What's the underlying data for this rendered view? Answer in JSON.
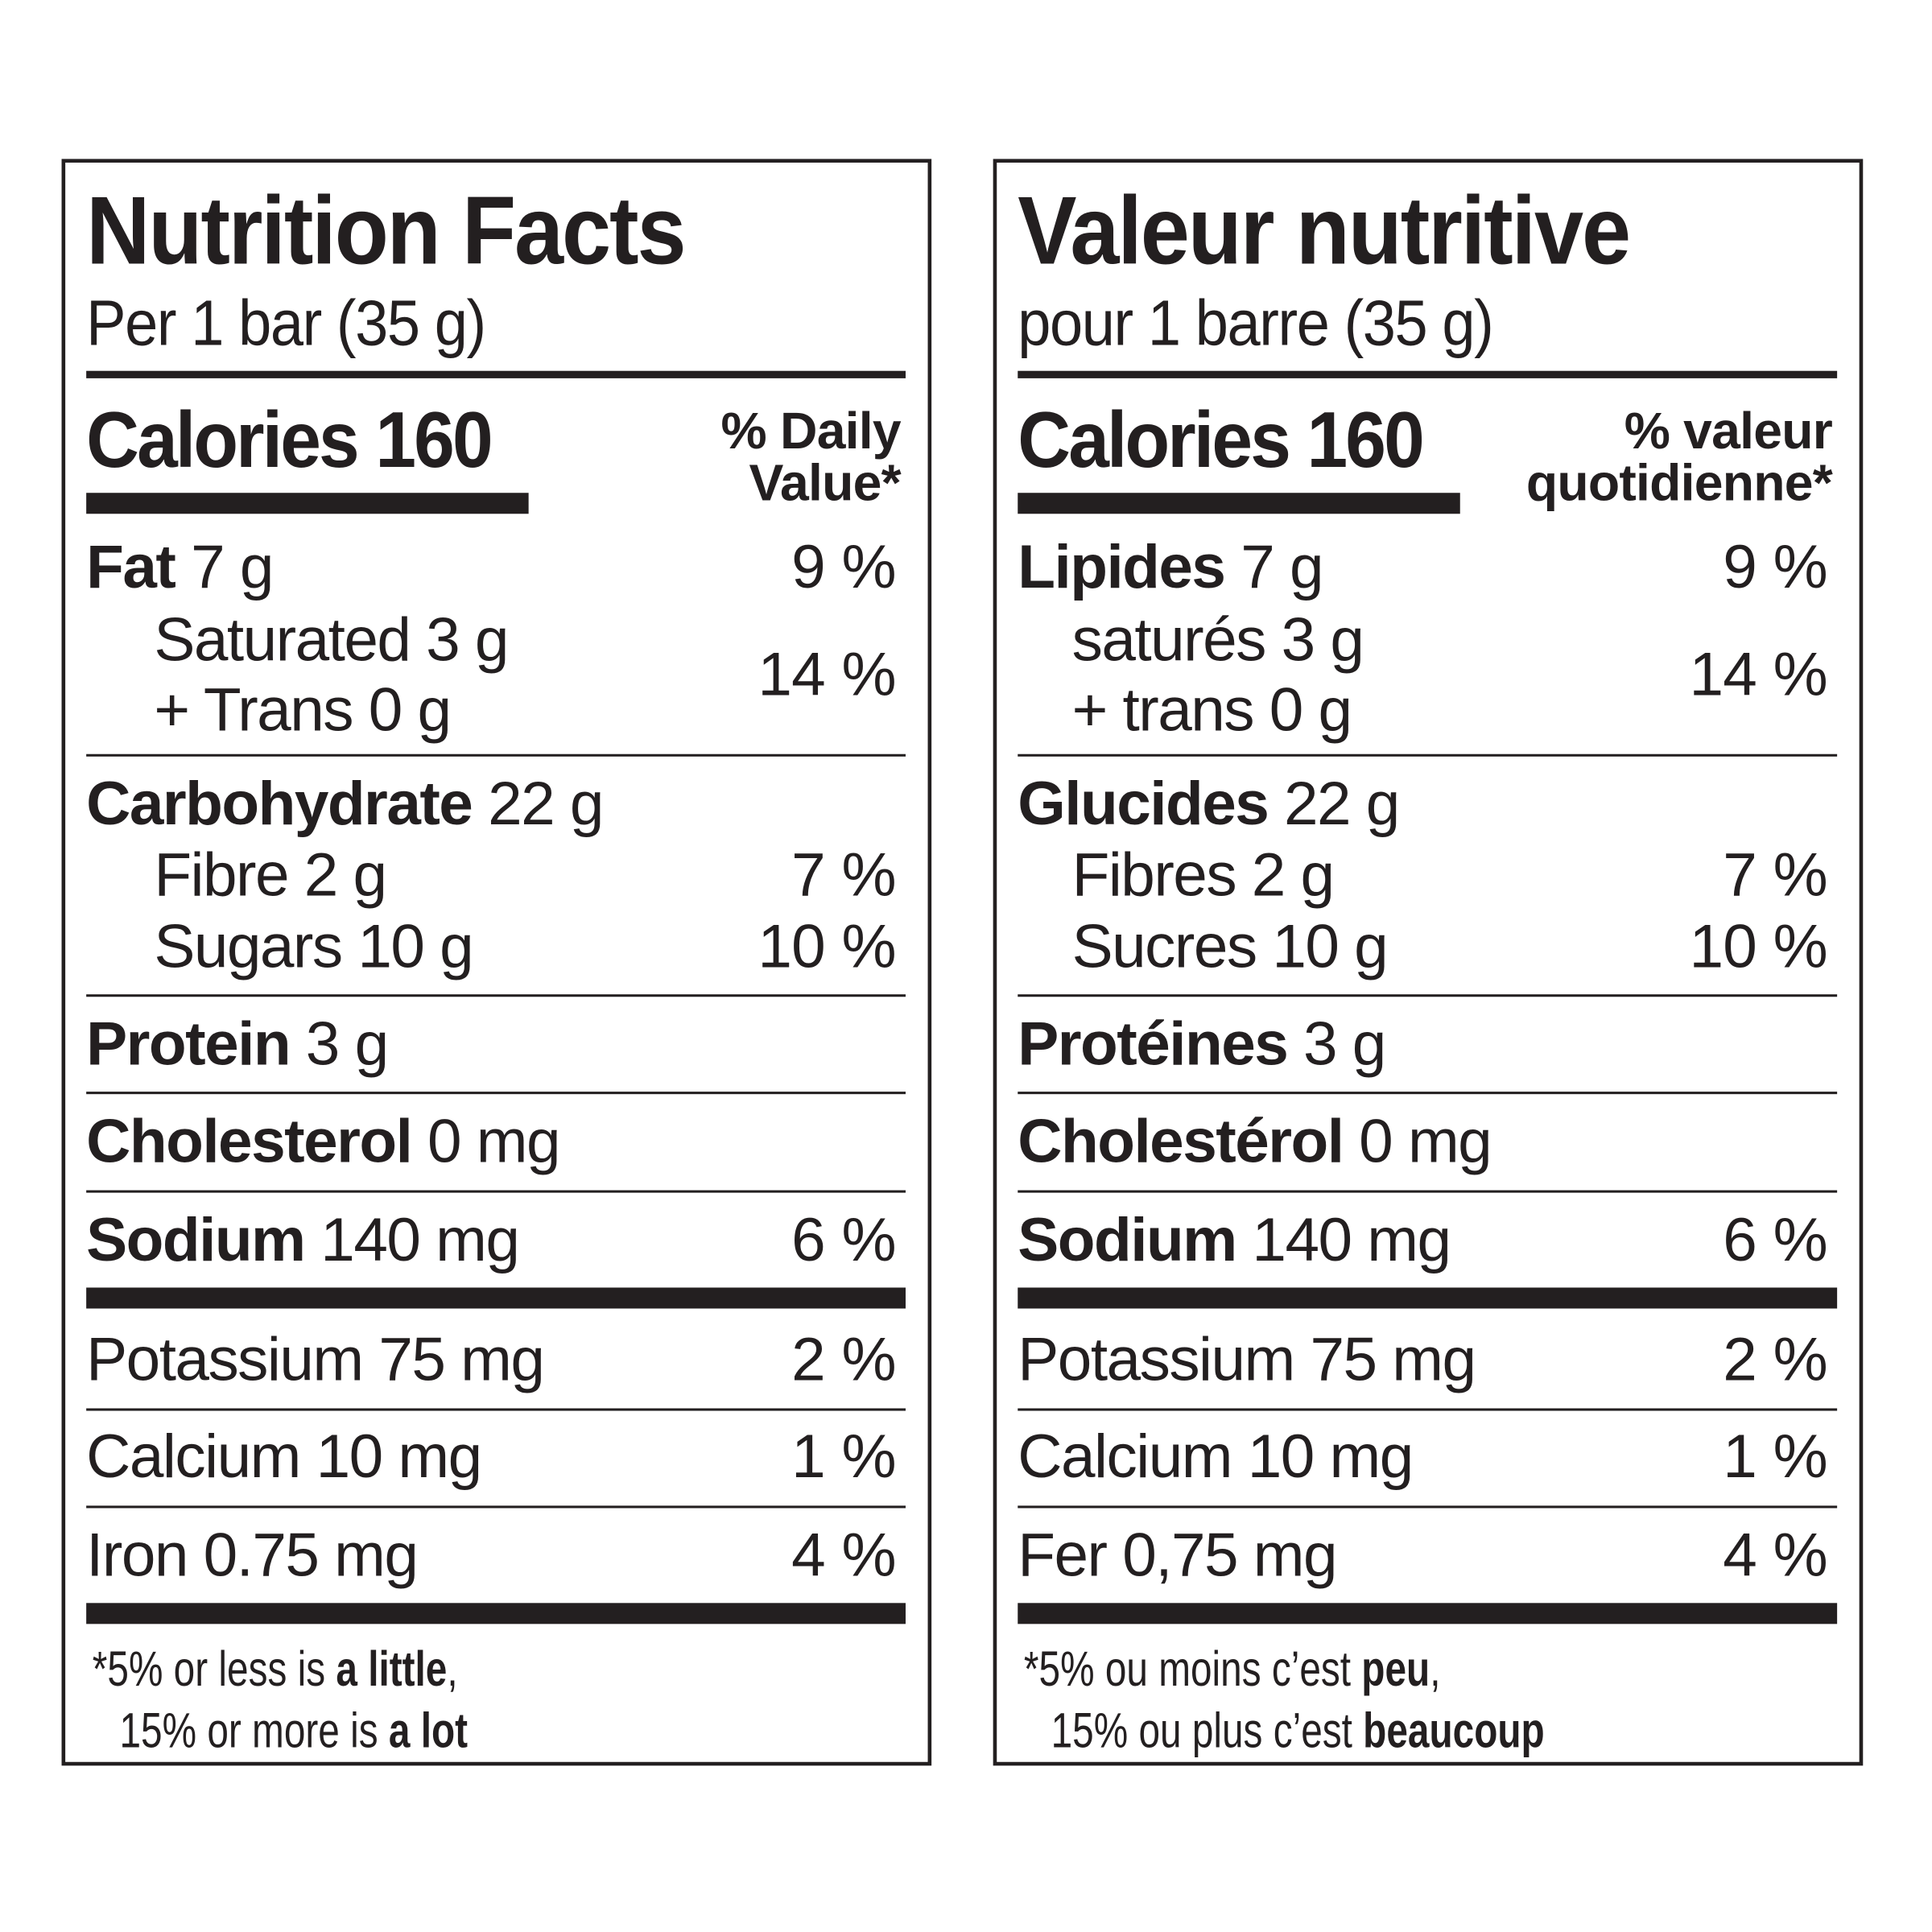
{
  "text_color": "#231f20",
  "panels": [
    {
      "id": "english",
      "title": "Nutrition Facts",
      "serving": "Per 1 bar (35 g)",
      "calories_label": "Calories 160",
      "dv_header": [
        "% Daily",
        "Value*"
      ],
      "rows": [
        {
          "key": "fat",
          "name": "Fat",
          "amount": " 7 g",
          "bold": true,
          "dv": "9 %"
        },
        {
          "key": "saturated",
          "name": "Saturated 3 g",
          "amount": "",
          "bold": false,
          "sub": true,
          "dv": "14 %"
        },
        {
          "key": "trans",
          "name": "+ Trans 0 g",
          "amount": "",
          "bold": false,
          "sub": true,
          "dv": ""
        },
        {
          "key": "carbohydrate",
          "name": "Carbohydrate",
          "amount": " 22 g",
          "bold": true,
          "dv": ""
        },
        {
          "key": "fibre",
          "name": "Fibre 2 g",
          "amount": "",
          "bold": false,
          "sub": true,
          "dv": "7 %"
        },
        {
          "key": "sugars",
          "name": "Sugars 10 g",
          "amount": "",
          "bold": false,
          "sub": true,
          "dv": "10 %"
        },
        {
          "key": "protein",
          "name": "Protein",
          "amount": " 3 g",
          "bold": true,
          "dv": ""
        },
        {
          "key": "cholesterol",
          "name": "Cholesterol",
          "amount": " 0 mg",
          "bold": true,
          "dv": ""
        },
        {
          "key": "sodium",
          "name": "Sodium",
          "amount": " 140 mg",
          "bold": true,
          "dv": "6 %"
        },
        {
          "key": "potassium",
          "name": "Potassium 75 mg",
          "amount": "",
          "bold": false,
          "dv": "2 %"
        },
        {
          "key": "calcium",
          "name": "Calcium 10 mg",
          "amount": "",
          "bold": false,
          "dv": "1 %"
        },
        {
          "key": "iron",
          "name": "Iron 0.75 mg",
          "amount": "",
          "bold": false,
          "dv": "4 %"
        }
      ],
      "footnote": {
        "asterisk": "*",
        "line1": [
          {
            "t": "5% or less is ",
            "b": false
          },
          {
            "t": "a little",
            "b": true
          },
          {
            "t": ",",
            "b": false
          }
        ],
        "line2": [
          {
            "t": "15% or more is ",
            "b": false
          },
          {
            "t": "a lot",
            "b": true
          }
        ]
      }
    },
    {
      "id": "french",
      "title": "Valeur nutritive",
      "serving": "pour 1 barre (35 g)",
      "calories_label": "Calories 160",
      "dv_header": [
        "% valeur",
        "quotidienne*"
      ],
      "rows": [
        {
          "key": "fat",
          "name": "Lipides",
          "amount": " 7 g",
          "bold": true,
          "dv": "9 %"
        },
        {
          "key": "saturated",
          "name": "saturés 3 g",
          "amount": "",
          "bold": false,
          "sub": true,
          "dv": "14 %"
        },
        {
          "key": "trans",
          "name": "+ trans 0 g",
          "amount": "",
          "bold": false,
          "sub": true,
          "dv": ""
        },
        {
          "key": "carbohydrate",
          "name": "Glucides",
          "amount": " 22 g",
          "bold": true,
          "dv": ""
        },
        {
          "key": "fibre",
          "name": "Fibres 2 g",
          "amount": "",
          "bold": false,
          "sub": true,
          "dv": "7 %"
        },
        {
          "key": "sugars",
          "name": "Sucres 10 g",
          "amount": "",
          "bold": false,
          "sub": true,
          "dv": "10 %"
        },
        {
          "key": "protein",
          "name": "Protéines",
          "amount": " 3 g",
          "bold": true,
          "dv": ""
        },
        {
          "key": "cholesterol",
          "name": "Cholestérol",
          "amount": " 0 mg",
          "bold": true,
          "dv": ""
        },
        {
          "key": "sodium",
          "name": "Sodium",
          "amount": " 140 mg",
          "bold": true,
          "dv": "6 %"
        },
        {
          "key": "potassium",
          "name": "Potassium 75 mg",
          "amount": "",
          "bold": false,
          "dv": "2 %"
        },
        {
          "key": "calcium",
          "name": "Calcium 10 mg",
          "amount": "",
          "bold": false,
          "dv": "1 %"
        },
        {
          "key": "iron",
          "name": "Fer 0,75 mg",
          "amount": "",
          "bold": false,
          "dv": "4 %"
        }
      ],
      "footnote": {
        "asterisk": "*",
        "line1": [
          {
            "t": "5% ou moins c’est ",
            "b": false
          },
          {
            "t": "peu",
            "b": true
          },
          {
            "t": ",",
            "b": false
          }
        ],
        "line2": [
          {
            "t": "15% ou plus c’est ",
            "b": false
          },
          {
            "t": "beaucoup",
            "b": true
          }
        ]
      }
    }
  ]
}
